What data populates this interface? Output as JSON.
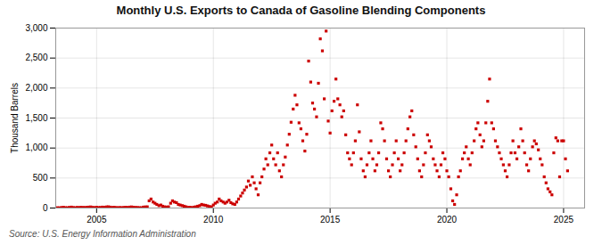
{
  "chart_data": {
    "type": "scatter",
    "title": "Monthly U.S. Exports to Canada of Gasoline Blending Components",
    "ylabel": "Thousand Barrels",
    "source": "Source: U.S. Energy Information Administration",
    "color": "#cc0000",
    "marker": "square",
    "grid": true,
    "xlim": [
      2003.25,
      2025.9
    ],
    "xticks": [
      2005,
      2010,
      2015,
      2020,
      2025
    ],
    "ylim": [
      0,
      3000
    ],
    "yticks": [
      0,
      500,
      {
        "value": 1000,
        "label": "1,000"
      },
      {
        "value": 1500,
        "label": "1,500"
      },
      {
        "value": 2000,
        "label": "2,000"
      },
      {
        "value": 2500,
        "label": "2,500"
      },
      {
        "value": 3000,
        "label": "3,000"
      }
    ],
    "x": [
      2003.33,
      2003.42,
      2003.5,
      2003.58,
      2003.67,
      2003.75,
      2003.83,
      2003.92,
      2004.0,
      2004.08,
      2004.17,
      2004.25,
      2004.33,
      2004.42,
      2004.5,
      2004.58,
      2004.67,
      2004.75,
      2004.83,
      2004.92,
      2005.0,
      2005.08,
      2005.17,
      2005.25,
      2005.33,
      2005.42,
      2005.5,
      2005.58,
      2005.67,
      2005.75,
      2005.83,
      2005.92,
      2006.0,
      2006.08,
      2006.17,
      2006.25,
      2006.33,
      2006.42,
      2006.5,
      2006.58,
      2006.67,
      2006.75,
      2006.83,
      2006.92,
      2007.0,
      2007.08,
      2007.17,
      2007.25,
      2007.33,
      2007.42,
      2007.5,
      2007.58,
      2007.67,
      2007.75,
      2007.83,
      2007.92,
      2008.0,
      2008.08,
      2008.17,
      2008.25,
      2008.33,
      2008.42,
      2008.5,
      2008.58,
      2008.67,
      2008.75,
      2008.83,
      2008.92,
      2009.0,
      2009.08,
      2009.17,
      2009.25,
      2009.33,
      2009.42,
      2009.5,
      2009.58,
      2009.67,
      2009.75,
      2009.83,
      2009.92,
      2010.0,
      2010.08,
      2010.17,
      2010.25,
      2010.33,
      2010.42,
      2010.5,
      2010.58,
      2010.67,
      2010.75,
      2010.83,
      2010.92,
      2011.0,
      2011.08,
      2011.17,
      2011.25,
      2011.33,
      2011.42,
      2011.5,
      2011.58,
      2011.67,
      2011.75,
      2011.83,
      2011.92,
      2012.0,
      2012.08,
      2012.17,
      2012.25,
      2012.33,
      2012.42,
      2012.5,
      2012.58,
      2012.67,
      2012.75,
      2012.83,
      2012.92,
      2013.0,
      2013.08,
      2013.17,
      2013.25,
      2013.33,
      2013.42,
      2013.5,
      2013.58,
      2013.67,
      2013.75,
      2013.83,
      2013.92,
      2014.0,
      2014.08,
      2014.17,
      2014.25,
      2014.33,
      2014.42,
      2014.5,
      2014.58,
      2014.67,
      2014.75,
      2014.83,
      2014.92,
      2015.0,
      2015.08,
      2015.17,
      2015.25,
      2015.33,
      2015.42,
      2015.5,
      2015.58,
      2015.67,
      2015.75,
      2015.83,
      2015.92,
      2016.0,
      2016.08,
      2016.17,
      2016.25,
      2016.33,
      2016.42,
      2016.5,
      2016.58,
      2016.67,
      2016.75,
      2016.83,
      2016.92,
      2017.0,
      2017.08,
      2017.17,
      2017.25,
      2017.33,
      2017.42,
      2017.5,
      2017.58,
      2017.67,
      2017.75,
      2017.83,
      2017.92,
      2018.0,
      2018.08,
      2018.17,
      2018.25,
      2018.33,
      2018.42,
      2018.5,
      2018.58,
      2018.67,
      2018.75,
      2018.83,
      2018.92,
      2019.0,
      2019.08,
      2019.17,
      2019.25,
      2019.33,
      2019.42,
      2019.5,
      2019.58,
      2019.67,
      2019.75,
      2019.83,
      2019.92,
      2020.0,
      2020.08,
      2020.17,
      2020.25,
      2020.33,
      2020.42,
      2020.5,
      2020.58,
      2020.67,
      2020.75,
      2020.83,
      2020.92,
      2021.0,
      2021.08,
      2021.17,
      2021.25,
      2021.33,
      2021.42,
      2021.5,
      2021.58,
      2021.67,
      2021.75,
      2021.83,
      2021.92,
      2022.0,
      2022.08,
      2022.17,
      2022.25,
      2022.33,
      2022.42,
      2022.5,
      2022.58,
      2022.67,
      2022.75,
      2022.83,
      2022.92,
      2023.0,
      2023.08,
      2023.17,
      2023.25,
      2023.33,
      2023.42,
      2023.5,
      2023.58,
      2023.67,
      2023.75,
      2023.83,
      2023.92,
      2024.0,
      2024.08,
      2024.17,
      2024.25,
      2024.33,
      2024.42,
      2024.5,
      2024.58,
      2024.67,
      2024.75,
      2024.83,
      2024.92,
      2025.0,
      2025.08,
      2025.17
    ],
    "values": [
      5,
      3,
      8,
      12,
      6,
      4,
      10,
      15,
      8,
      5,
      10,
      8,
      12,
      10,
      8,
      12,
      15,
      18,
      10,
      8,
      12,
      8,
      10,
      15,
      12,
      18,
      20,
      15,
      10,
      12,
      8,
      6,
      8,
      6,
      10,
      12,
      10,
      15,
      18,
      12,
      10,
      8,
      6,
      5,
      15,
      18,
      20,
      120,
      150,
      100,
      80,
      60,
      40,
      50,
      30,
      20,
      15,
      20,
      80,
      120,
      100,
      90,
      60,
      50,
      40,
      30,
      20,
      10,
      12,
      8,
      15,
      20,
      30,
      40,
      60,
      50,
      45,
      35,
      25,
      20,
      50,
      80,
      100,
      150,
      120,
      100,
      80,
      100,
      130,
      90,
      70,
      60,
      100,
      150,
      200,
      250,
      300,
      350,
      450,
      380,
      520,
      420,
      320,
      220,
      420,
      520,
      650,
      820,
      720,
      920,
      1050,
      820,
      720,
      920,
      620,
      520,
      720,
      850,
      1050,
      1230,
      1430,
      1650,
      1880,
      1720,
      1420,
      1320,
      1120,
      950,
      1230,
      2450,
      2100,
      1750,
      1650,
      1520,
      2080,
      2820,
      2620,
      1820,
      2950,
      1450,
      1250,
      1620,
      1780,
      2150,
      1820,
      1720,
      1520,
      1620,
      1220,
      920,
      820,
      720,
      920,
      1120,
      1720,
      1270,
      820,
      620,
      520,
      720,
      920,
      1120,
      820,
      620,
      720,
      920,
      1420,
      1320,
      1120,
      820,
      620,
      520,
      720,
      920,
      1120,
      820,
      620,
      720,
      920,
      1120,
      1320,
      1520,
      1620,
      1220,
      1020,
      820,
      620,
      520,
      720,
      920,
      1220,
      1120,
      1020,
      820,
      720,
      620,
      520,
      720,
      920,
      820,
      620,
      520,
      320,
      120,
      60,
      220,
      520,
      620,
      820,
      920,
      1020,
      820,
      720,
      920,
      1120,
      1320,
      1420,
      1220,
      1020,
      1120,
      1420,
      1780,
      2150,
      1420,
      1320,
      1120,
      1020,
      920,
      820,
      720,
      620,
      520,
      720,
      920,
      1120,
      920,
      820,
      1020,
      1320,
      1120,
      920,
      720,
      620,
      820,
      1020,
      1120,
      1070,
      970,
      820,
      720,
      520,
      420,
      320,
      270,
      220,
      920,
      1170,
      1120,
      520,
      1120,
      1120,
      820,
      620
    ]
  }
}
